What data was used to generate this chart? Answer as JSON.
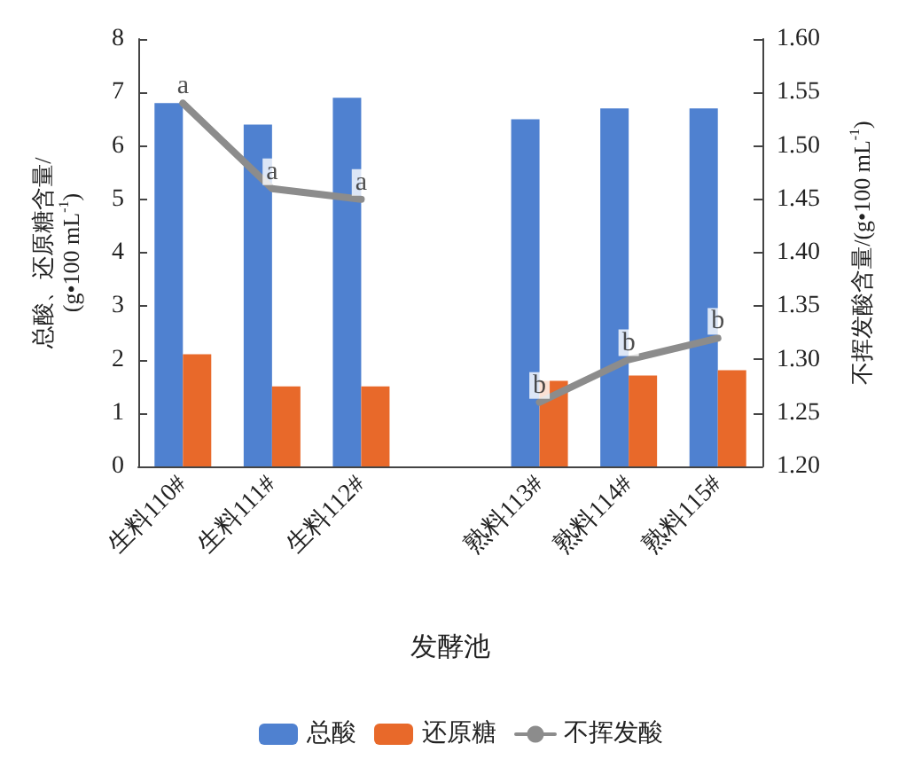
{
  "chart_data": {
    "type": "bar",
    "xlabel": "发酵池",
    "ylabel": "总酸、还原糖含量/\n(g•100 mL$^{-1}$)",
    "y2label": "不挥发酸含量/(g•100 mL$^{-1}$)",
    "categories": [
      "生料110#",
      "生料111#",
      "生料112#",
      null,
      "熟料113#",
      "熟料114#",
      "熟料115#"
    ],
    "series": [
      {
        "name": "总酸",
        "color": "#4f81d0",
        "values": [
          6.8,
          6.4,
          6.9,
          null,
          6.5,
          6.7,
          6.7
        ]
      },
      {
        "name": "还原糖",
        "color": "#e8692a",
        "values": [
          2.1,
          1.5,
          1.5,
          null,
          1.6,
          1.7,
          1.8
        ]
      },
      {
        "name": "不挥发酸",
        "type": "line",
        "axis": "y2",
        "color": "#8c8c8c",
        "values": [
          1.54,
          1.46,
          1.45,
          null,
          1.26,
          1.3,
          1.32
        ]
      }
    ],
    "ylim": [
      0,
      8
    ],
    "yticks": [
      0,
      1,
      2,
      3,
      4,
      5,
      6,
      7,
      8
    ],
    "y2lim": [
      1.2,
      1.6
    ],
    "y2ticks": [
      {
        "value": 1.2,
        "label": "1.20"
      },
      {
        "value": 1.25,
        "label": "1.25"
      },
      {
        "value": 1.3,
        "label": "1.30"
      },
      {
        "value": 1.35,
        "label": "1.35"
      },
      {
        "value": 1.4,
        "label": "1.40"
      },
      {
        "value": 1.45,
        "label": "1.45"
      },
      {
        "value": 1.5,
        "label": "1.50"
      },
      {
        "value": 1.55,
        "label": "1.55"
      },
      {
        "value": 1.6,
        "label": "1.60"
      }
    ],
    "annotations": [
      "a",
      "a",
      "a",
      "b",
      "b",
      "b"
    ],
    "grid": false,
    "legend": "bottom",
    "marker": "none"
  }
}
